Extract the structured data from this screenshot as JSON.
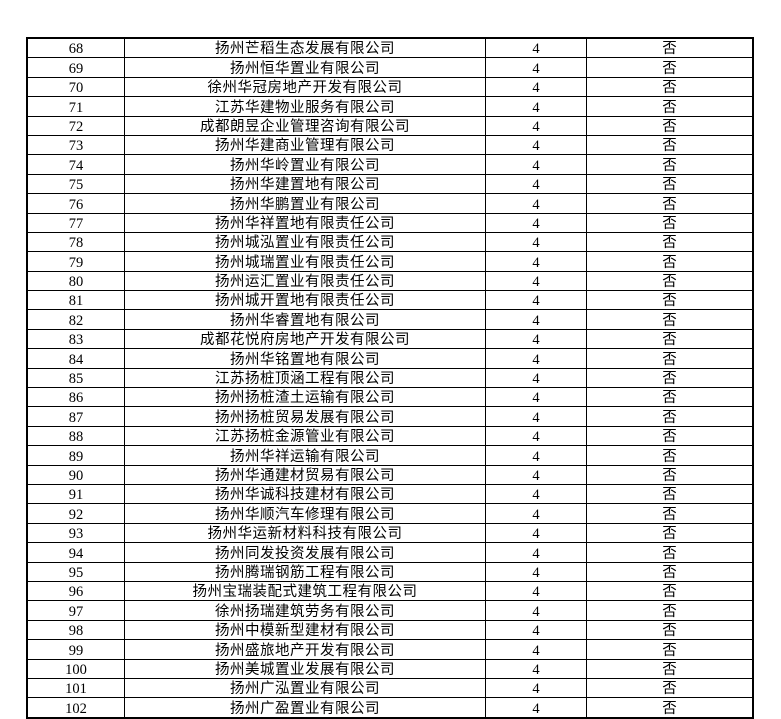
{
  "table": {
    "rows": [
      {
        "no": "68",
        "name": "扬州芒稻生态发展有限公司",
        "value": "4",
        "flag": "否"
      },
      {
        "no": "69",
        "name": "扬州恒华置业有限公司",
        "value": "4",
        "flag": "否"
      },
      {
        "no": "70",
        "name": "徐州华冠房地产开发有限公司",
        "value": "4",
        "flag": "否"
      },
      {
        "no": "71",
        "name": "江苏华建物业服务有限公司",
        "value": "4",
        "flag": "否"
      },
      {
        "no": "72",
        "name": "成都朗昱企业管理咨询有限公司",
        "value": "4",
        "flag": "否"
      },
      {
        "no": "73",
        "name": "扬州华建商业管理有限公司",
        "value": "4",
        "flag": "否"
      },
      {
        "no": "74",
        "name": "扬州华岭置业有限公司",
        "value": "4",
        "flag": "否"
      },
      {
        "no": "75",
        "name": "扬州华建置地有限公司",
        "value": "4",
        "flag": "否"
      },
      {
        "no": "76",
        "name": "扬州华鹏置业有限公司",
        "value": "4",
        "flag": "否"
      },
      {
        "no": "77",
        "name": "扬州华祥置地有限责任公司",
        "value": "4",
        "flag": "否"
      },
      {
        "no": "78",
        "name": "扬州城泓置业有限责任公司",
        "value": "4",
        "flag": "否"
      },
      {
        "no": "79",
        "name": "扬州城瑞置业有限责任公司",
        "value": "4",
        "flag": "否"
      },
      {
        "no": "80",
        "name": "扬州运汇置业有限责任公司",
        "value": "4",
        "flag": "否"
      },
      {
        "no": "81",
        "name": "扬州城开置地有限责任公司",
        "value": "4",
        "flag": "否"
      },
      {
        "no": "82",
        "name": "扬州华睿置地有限公司",
        "value": "4",
        "flag": "否"
      },
      {
        "no": "83",
        "name": "成都花悦府房地产开发有限公司",
        "value": "4",
        "flag": "否"
      },
      {
        "no": "84",
        "name": "扬州华铭置地有限公司",
        "value": "4",
        "flag": "否"
      },
      {
        "no": "85",
        "name": "江苏扬桩顶涵工程有限公司",
        "value": "4",
        "flag": "否"
      },
      {
        "no": "86",
        "name": "扬州扬桩渣土运输有限公司",
        "value": "4",
        "flag": "否"
      },
      {
        "no": "87",
        "name": "扬州扬桩贸易发展有限公司",
        "value": "4",
        "flag": "否"
      },
      {
        "no": "88",
        "name": "江苏扬桩金源管业有限公司",
        "value": "4",
        "flag": "否"
      },
      {
        "no": "89",
        "name": "扬州华祥运输有限公司",
        "value": "4",
        "flag": "否"
      },
      {
        "no": "90",
        "name": "扬州华通建材贸易有限公司",
        "value": "4",
        "flag": "否"
      },
      {
        "no": "91",
        "name": "扬州华诚科技建材有限公司",
        "value": "4",
        "flag": "否"
      },
      {
        "no": "92",
        "name": "扬州华顺汽车修理有限公司",
        "value": "4",
        "flag": "否"
      },
      {
        "no": "93",
        "name": "扬州华运新材料科技有限公司",
        "value": "4",
        "flag": "否"
      },
      {
        "no": "94",
        "name": "扬州同发投资发展有限公司",
        "value": "4",
        "flag": "否"
      },
      {
        "no": "95",
        "name": "扬州腾瑞钢筋工程有限公司",
        "value": "4",
        "flag": "否"
      },
      {
        "no": "96",
        "name": "扬州宝瑞装配式建筑工程有限公司",
        "value": "4",
        "flag": "否"
      },
      {
        "no": "97",
        "name": "徐州扬瑞建筑劳务有限公司",
        "value": "4",
        "flag": "否"
      },
      {
        "no": "98",
        "name": "扬州中模新型建材有限公司",
        "value": "4",
        "flag": "否"
      },
      {
        "no": "99",
        "name": "扬州盛旅地产开发有限公司",
        "value": "4",
        "flag": "否"
      },
      {
        "no": "100",
        "name": "扬州美城置业发展有限公司",
        "value": "4",
        "flag": "否"
      },
      {
        "no": "101",
        "name": "扬州广泓置业有限公司",
        "value": "4",
        "flag": "否"
      },
      {
        "no": "102",
        "name": "扬州广盈置业有限公司",
        "value": "4",
        "flag": "否"
      }
    ]
  }
}
